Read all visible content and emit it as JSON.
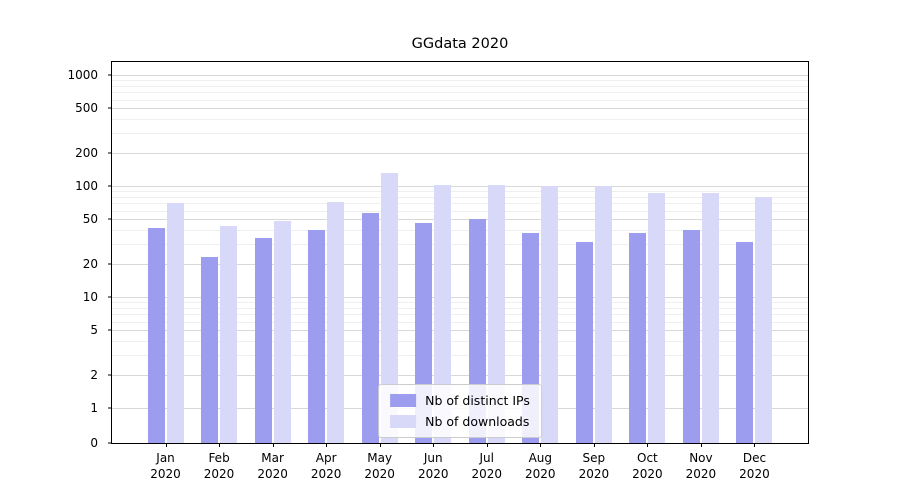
{
  "chart_data": {
    "type": "bar",
    "title": "GGdata 2020",
    "categories": [
      "Jan 2020",
      "Feb 2020",
      "Mar 2020",
      "Apr 2020",
      "May 2020",
      "Jun 2020",
      "Jul 2020",
      "Aug 2020",
      "Sep 2020",
      "Oct 2020",
      "Nov 2020",
      "Dec 2020"
    ],
    "series": [
      {
        "name": "Nb of distinct IPs",
        "color": "#9d9df0",
        "values": [
          42,
          23,
          34,
          40,
          57,
          46,
          50,
          38,
          31,
          38,
          40,
          31
        ]
      },
      {
        "name": "Nb of downloads",
        "color": "#d8d8f8",
        "values": [
          70,
          44,
          48,
          72,
          130,
          102,
          102,
          100,
          100,
          87,
          87,
          80
        ]
      }
    ],
    "xlabel": "",
    "ylabel": "",
    "yscale": "symlog",
    "yticks": [
      0,
      1,
      2,
      5,
      10,
      20,
      50,
      100,
      200,
      500,
      1000
    ],
    "ylim": [
      0,
      1300
    ],
    "grid": "horizontal",
    "legend_position": "lower center"
  }
}
